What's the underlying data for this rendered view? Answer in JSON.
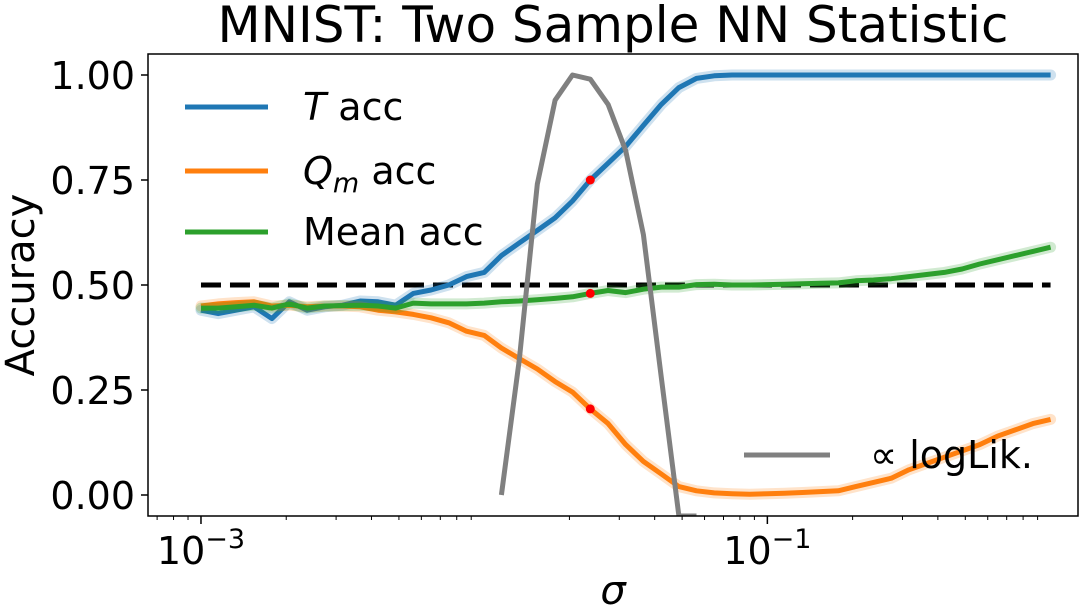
{
  "chart_data": {
    "type": "line",
    "title": "MNIST: Two Sample NN Statistic",
    "xlabel": "σ",
    "ylabel": "Accuracy",
    "xscale": "log",
    "xlim": [
      0.00065,
      1.25
    ],
    "ylim": [
      -0.05,
      1.05
    ],
    "grid": false,
    "legend_position": "upper-left",
    "x_ticks": [
      {
        "value": 0.001,
        "base": "10",
        "exp": "−3"
      },
      {
        "value": 0.1,
        "base": "10",
        "exp": "−1"
      }
    ],
    "y_ticks": [
      {
        "value": 0.0,
        "label": "0.00"
      },
      {
        "value": 0.25,
        "label": "0.25"
      },
      {
        "value": 0.5,
        "label": "0.50"
      },
      {
        "value": 0.75,
        "label": "0.75"
      },
      {
        "value": 1.0,
        "label": "1.00"
      }
    ],
    "reference_line": {
      "y": 0.5,
      "color": "#000000",
      "style": "dashed"
    },
    "x": [
      0.001,
      0.00115,
      0.00133,
      0.00154,
      0.00178,
      0.00205,
      0.00237,
      0.00274,
      0.00316,
      0.00365,
      0.00422,
      0.00487,
      0.00562,
      0.00649,
      0.0075,
      0.00866,
      0.01,
      0.0115,
      0.0133,
      0.0154,
      0.0178,
      0.0205,
      0.0237,
      0.0274,
      0.0316,
      0.0365,
      0.0422,
      0.0487,
      0.0562,
      0.0649,
      0.075,
      0.0866,
      0.1,
      0.115,
      0.133,
      0.154,
      0.178,
      0.205,
      0.237,
      0.274,
      0.316,
      0.365,
      0.422,
      0.487,
      0.562,
      0.649,
      0.75,
      0.866,
      1.0
    ],
    "series": [
      {
        "name": "T acc",
        "name_main": "T",
        "name_sub": "",
        "name_rest": " acc",
        "color": "#1f77b4",
        "values": [
          0.44,
          0.432,
          0.44,
          0.448,
          0.42,
          0.46,
          0.44,
          0.448,
          0.452,
          0.462,
          0.46,
          0.452,
          0.48,
          0.488,
          0.5,
          0.52,
          0.53,
          0.57,
          0.6,
          0.63,
          0.66,
          0.7,
          0.75,
          0.79,
          0.83,
          0.88,
          0.93,
          0.97,
          0.992,
          0.998,
          1.0,
          1.0,
          1.0,
          1.0,
          1.0,
          1.0,
          1.0,
          1.0,
          1.0,
          1.0,
          1.0,
          1.0,
          1.0,
          1.0,
          1.0,
          1.0,
          1.0,
          1.0,
          1.0
        ]
      },
      {
        "name": "Qm acc",
        "name_main": "Q",
        "name_sub": "m",
        "name_rest": " acc",
        "color": "#ff7f0e",
        "values": [
          0.45,
          0.455,
          0.458,
          0.46,
          0.45,
          0.452,
          0.448,
          0.45,
          0.45,
          0.448,
          0.44,
          0.436,
          0.43,
          0.422,
          0.41,
          0.39,
          0.38,
          0.35,
          0.325,
          0.3,
          0.27,
          0.245,
          0.205,
          0.17,
          0.12,
          0.08,
          0.05,
          0.02,
          0.01,
          0.005,
          0.003,
          0.002,
          0.003,
          0.004,
          0.006,
          0.008,
          0.01,
          0.02,
          0.03,
          0.04,
          0.06,
          0.075,
          0.09,
          0.105,
          0.12,
          0.14,
          0.155,
          0.17,
          0.18
        ]
      },
      {
        "name": "Mean acc",
        "name_main": "Mean acc",
        "name_sub": "",
        "name_rest": "",
        "color": "#2ca02c",
        "values": [
          0.445,
          0.445,
          0.448,
          0.452,
          0.445,
          0.455,
          0.445,
          0.45,
          0.451,
          0.452,
          0.45,
          0.445,
          0.457,
          0.455,
          0.455,
          0.455,
          0.457,
          0.46,
          0.462,
          0.465,
          0.468,
          0.472,
          0.48,
          0.487,
          0.482,
          0.49,
          0.495,
          0.495,
          0.501,
          0.502,
          0.5,
          0.5,
          0.501,
          0.502,
          0.503,
          0.504,
          0.505,
          0.51,
          0.512,
          0.515,
          0.52,
          0.525,
          0.53,
          0.538,
          0.55,
          0.56,
          0.57,
          0.58,
          0.59
        ]
      },
      {
        "name": "∝ logLik.",
        "name_main": "∝ logLik.",
        "name_sub": "",
        "name_rest": "",
        "color": "#808080",
        "x": [
          0.0115,
          0.0133,
          0.0154,
          0.0178,
          0.0205,
          0.0237,
          0.0274,
          0.0316,
          0.0365,
          0.0422,
          0.0487,
          0.0562
        ],
        "values": [
          0.0,
          0.32,
          0.74,
          0.94,
          1.0,
          0.99,
          0.93,
          0.82,
          0.62,
          0.28,
          -0.05,
          -0.05
        ]
      }
    ],
    "highlight_points": [
      {
        "x": 0.0237,
        "y": 0.75,
        "color": "#ff0000"
      },
      {
        "x": 0.0237,
        "y": 0.48,
        "color": "#ff0000"
      },
      {
        "x": 0.0237,
        "y": 0.205,
        "color": "#ff0000"
      }
    ]
  }
}
